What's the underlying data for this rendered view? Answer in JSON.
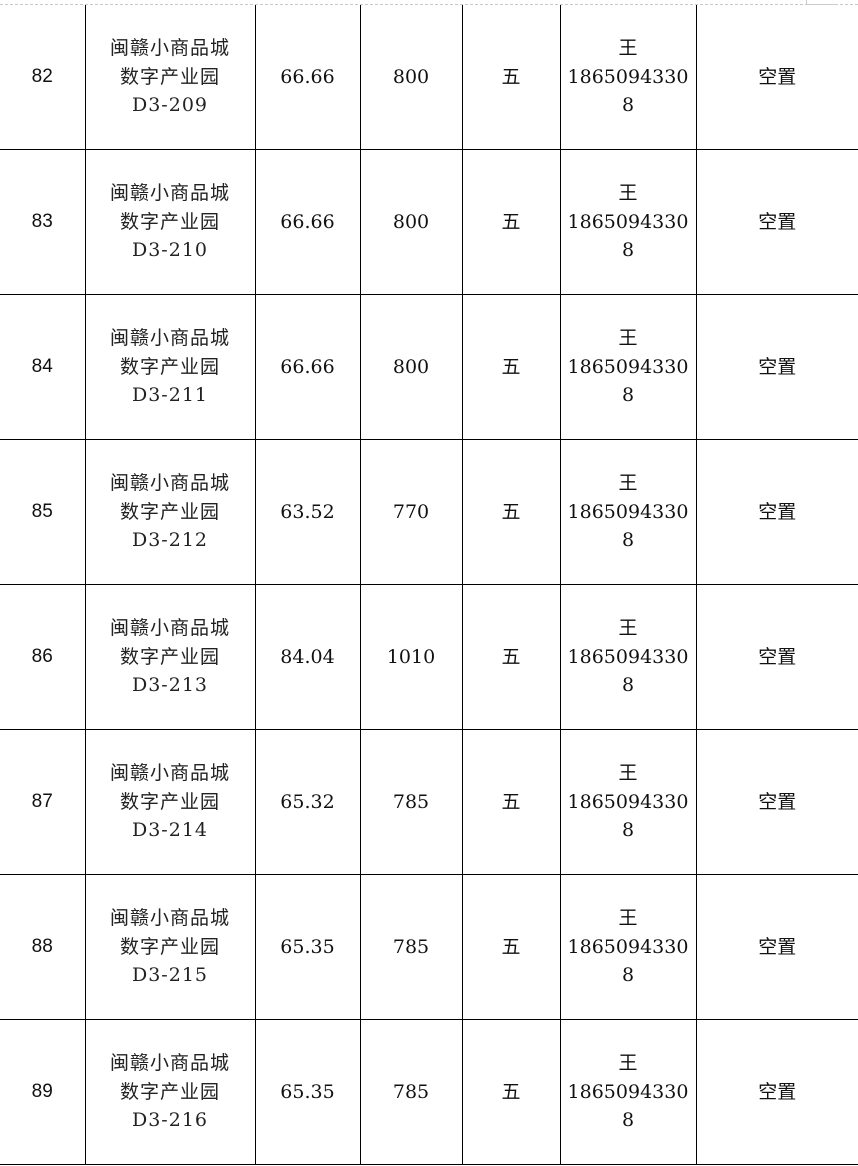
{
  "rows": [
    {
      "no": "82",
      "name": [
        "闽赣小商品城",
        "数字产业园",
        "D3-209"
      ],
      "area": "66.66",
      "price": "800",
      "floor": "五",
      "contact": [
        "王",
        "1865094330",
        "8"
      ],
      "status": "空置"
    },
    {
      "no": "83",
      "name": [
        "闽赣小商品城",
        "数字产业园",
        "D3-210"
      ],
      "area": "66.66",
      "price": "800",
      "floor": "五",
      "contact": [
        "王",
        "1865094330",
        "8"
      ],
      "status": "空置"
    },
    {
      "no": "84",
      "name": [
        "闽赣小商品城",
        "数字产业园",
        "D3-211"
      ],
      "area": "66.66",
      "price": "800",
      "floor": "五",
      "contact": [
        "王",
        "1865094330",
        "8"
      ],
      "status": "空置"
    },
    {
      "no": "85",
      "name": [
        "闽赣小商品城",
        "数字产业园",
        "D3-212"
      ],
      "area": "63.52",
      "price": "770",
      "floor": "五",
      "contact": [
        "王",
        "1865094330",
        "8"
      ],
      "status": "空置"
    },
    {
      "no": "86",
      "name": [
        "闽赣小商品城",
        "数字产业园",
        "D3-213"
      ],
      "area": "84.04",
      "price": "1010",
      "floor": "五",
      "contact": [
        "王",
        "1865094330",
        "8"
      ],
      "status": "空置"
    },
    {
      "no": "87",
      "name": [
        "闽赣小商品城",
        "数字产业园",
        "D3-214"
      ],
      "area": "65.32",
      "price": "785",
      "floor": "五",
      "contact": [
        "王",
        "1865094330",
        "8"
      ],
      "status": "空置"
    },
    {
      "no": "88",
      "name": [
        "闽赣小商品城",
        "数字产业园",
        "D3-215"
      ],
      "area": "65.35",
      "price": "785",
      "floor": "五",
      "contact": [
        "王",
        "1865094330",
        "8"
      ],
      "status": "空置"
    },
    {
      "no": "89",
      "name": [
        "闽赣小商品城",
        "数字产业园",
        "D3-216"
      ],
      "area": "65.35",
      "price": "785",
      "floor": "五",
      "contact": [
        "王",
        "1865094330",
        "8"
      ],
      "status": "空置"
    }
  ]
}
